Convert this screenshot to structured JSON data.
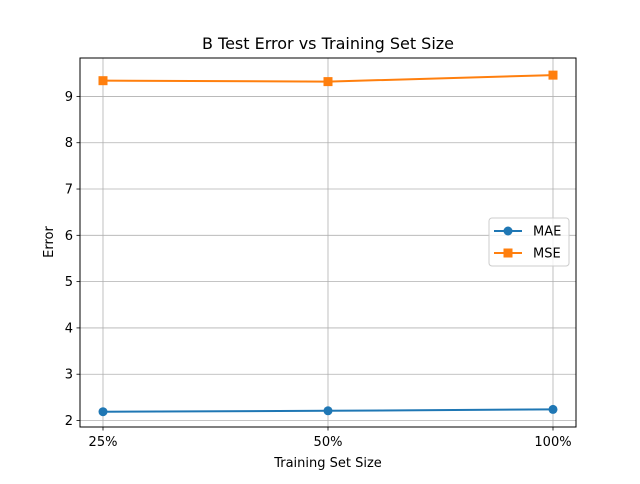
{
  "chart_data": {
    "type": "line",
    "title": "B Test Error vs Training Set Size",
    "xlabel": "Training Set Size",
    "ylabel": "Error",
    "categories": [
      "25%",
      "50%",
      "100%"
    ],
    "series": [
      {
        "name": "MAE",
        "values": [
          2.19,
          2.21,
          2.24
        ],
        "color": "#1f77b4",
        "marker": "circle"
      },
      {
        "name": "MSE",
        "values": [
          9.34,
          9.32,
          9.46
        ],
        "color": "#ff7f0e",
        "marker": "square"
      }
    ],
    "ylim": [
      1.86,
      9.83
    ],
    "yticks": [
      2,
      3,
      4,
      5,
      6,
      7,
      8,
      9
    ],
    "grid": true,
    "legend_position": "center-right"
  }
}
